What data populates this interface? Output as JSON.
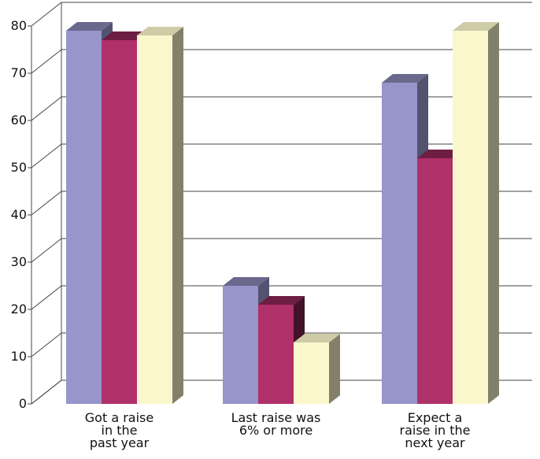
{
  "chart_data": {
    "type": "bar",
    "title": "",
    "xlabel": "",
    "ylabel": "",
    "ylim": [
      0,
      80
    ],
    "y_ticks": [
      "0",
      "10",
      "20",
      "30",
      "40",
      "50",
      "60",
      "70",
      "80"
    ],
    "categories": [
      [
        "Got a raise",
        "in the",
        "past year"
      ],
      [
        "Last raise was",
        "6% or more"
      ],
      [
        "Expect a",
        "raise in the",
        "next year"
      ]
    ],
    "series": [
      {
        "values": [
          79,
          25,
          68
        ],
        "color": "#9795C9"
      },
      {
        "values": [
          77,
          21,
          52
        ],
        "color": "#B0306A"
      },
      {
        "values": [
          78,
          13,
          79
        ],
        "color": "#FBF7CC"
      }
    ],
    "grid": true,
    "legend": "none",
    "style": "3d-bars"
  }
}
